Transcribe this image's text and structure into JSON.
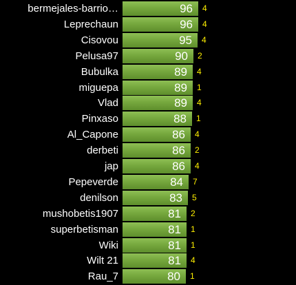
{
  "chart_data": {
    "type": "bar",
    "orientation": "horizontal",
    "colors": {
      "bar": "#76a83e",
      "count": "#ffef00",
      "label": "#ffffff",
      "background": "#000000"
    },
    "categories": [
      "bermejales-barrio…",
      "Leprechaun",
      "Cisovou",
      "Pelusa97",
      "Bubulka",
      "miguepa",
      "Vlad",
      "Pinxaso",
      "Al_Capone",
      "derbeti",
      "jap",
      "Pepeverde",
      "denilson",
      "mushobetis1907",
      "superbetisman",
      "Wiki",
      "Wilt 21",
      "Rau_7"
    ],
    "values": [
      96,
      96,
      95,
      90,
      89,
      89,
      89,
      88,
      86,
      86,
      86,
      84,
      83,
      81,
      81,
      81,
      81,
      80
    ],
    "counts": [
      4,
      4,
      4,
      2,
      4,
      1,
      4,
      1,
      4,
      2,
      4,
      7,
      5,
      2,
      1,
      1,
      4,
      1
    ],
    "xlim": [
      0,
      96
    ]
  }
}
